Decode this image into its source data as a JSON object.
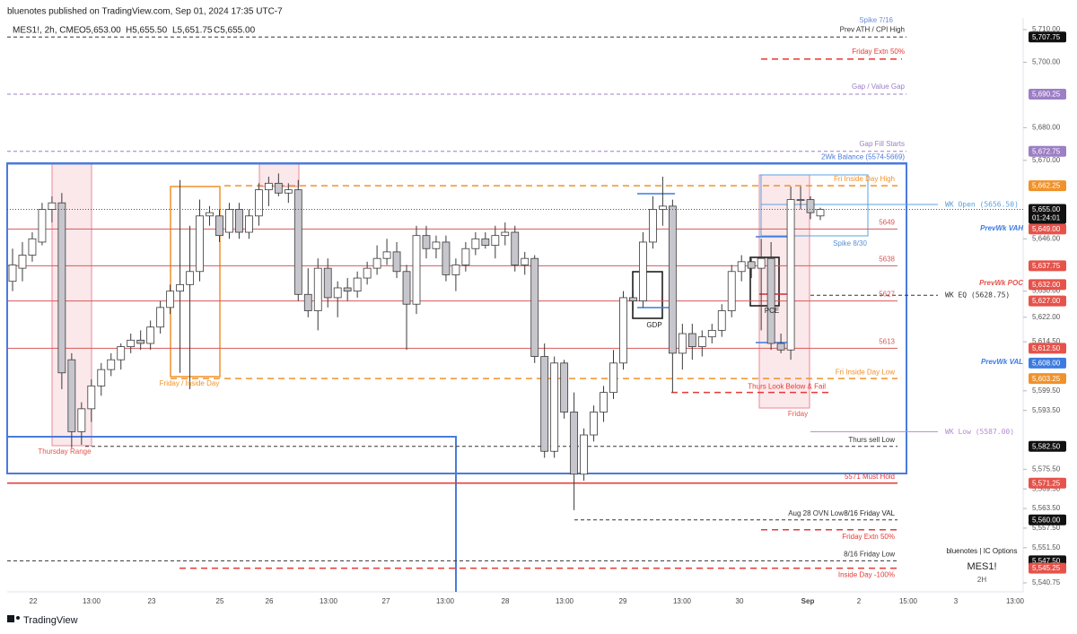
{
  "publisher": "bluenotes published on TradingView.com, Sep 01, 2024 17:35 UTC-7",
  "footer": "TradingView",
  "chart_data": {
    "type": "candlestick",
    "title": "MES1!, 2h, CME",
    "ohlc_header": [
      "O5,653.00",
      "H5,655.50",
      "L5,651.75",
      "C5,655.00"
    ],
    "up_color": "#ffffff",
    "down_color": "#c6c6cc",
    "wick_color": "#3a3a3a",
    "open": [
      5633,
      5637,
      5641,
      5645,
      5655,
      5657,
      5609,
      5587,
      5594,
      5601,
      5606,
      5609,
      5613,
      5615,
      5614,
      5619,
      5625,
      5630,
      5632,
      5636,
      5653,
      5653,
      5648,
      5655,
      5648,
      5653,
      5661,
      5663,
      5660,
      5661,
      5629,
      5624,
      5637,
      5628,
      5631,
      5630,
      5634,
      5637,
      5640,
      5642,
      5636,
      5626,
      5647,
      5643,
      5645,
      5635,
      5638,
      5643,
      5646,
      5644,
      5647,
      5648,
      5638,
      5640,
      5610,
      5581,
      5608,
      5593,
      5574,
      5586,
      5593,
      5599,
      5608,
      5628,
      5627,
      5645,
      5655,
      5656,
      5611,
      5617,
      5613,
      5616,
      5618,
      5624,
      5636,
      5639,
      5637,
      5640,
      5614,
      5612,
      5658,
      5658,
      5653
    ],
    "high": [
      5643,
      5645,
      5648,
      5657,
      5659,
      5660,
      5611,
      5596,
      5603,
      5608,
      5611,
      5614,
      5617,
      5618,
      5621,
      5627,
      5632,
      5664,
      5650,
      5658,
      5656,
      5655,
      5657,
      5657,
      5655,
      5663,
      5665,
      5666,
      5663,
      5664,
      5637,
      5640,
      5640,
      5633,
      5634,
      5636,
      5639,
      5644,
      5646,
      5645,
      5638,
      5650,
      5650,
      5647,
      5647,
      5640,
      5645,
      5648,
      5648,
      5650,
      5651,
      5650,
      5642,
      5641,
      5614,
      5610,
      5609,
      5599,
      5588,
      5595,
      5601,
      5612,
      5630,
      5630,
      5648,
      5659,
      5665,
      5658,
      5620,
      5620,
      5618,
      5620,
      5626,
      5638,
      5641,
      5640,
      5646,
      5645,
      5617,
      5662,
      5662,
      5659,
      5655.5
    ],
    "low": [
      5630,
      5633,
      5639,
      5644,
      5651,
      5600,
      5582,
      5583,
      5590,
      5598,
      5604,
      5606,
      5611,
      5612,
      5612,
      5617,
      5623,
      5605,
      5600,
      5633,
      5650,
      5645,
      5646,
      5646,
      5646,
      5650,
      5656,
      5659,
      5657,
      5627,
      5622,
      5618,
      5625,
      5622,
      5627,
      5628,
      5632,
      5635,
      5638,
      5634,
      5612,
      5623,
      5640,
      5640,
      5633,
      5630,
      5636,
      5641,
      5643,
      5640,
      5644,
      5636,
      5635,
      5608,
      5579,
      5579,
      5591,
      5563,
      5572,
      5584,
      5590,
      5597,
      5606,
      5624,
      5625,
      5643,
      5650,
      5599,
      5606,
      5609,
      5610,
      5614,
      5616,
      5622,
      5633,
      5634,
      5618,
      5612,
      5611,
      5609,
      5655,
      5652,
      5651.75
    ],
    "close": [
      5638,
      5641,
      5646,
      5655,
      5657,
      5605,
      5587,
      5594,
      5601,
      5606,
      5609,
      5613,
      5615,
      5614,
      5619,
      5625,
      5630,
      5632,
      5636,
      5653,
      5654,
      5647,
      5655,
      5648,
      5653,
      5661,
      5663,
      5660,
      5661,
      5629,
      5624,
      5637,
      5628,
      5631,
      5630,
      5634,
      5637,
      5640,
      5642,
      5636,
      5626,
      5647,
      5643,
      5645,
      5635,
      5638,
      5643,
      5646,
      5644,
      5647,
      5648,
      5638,
      5640,
      5610,
      5581,
      5608,
      5593,
      5574,
      5586,
      5593,
      5599,
      5608,
      5628,
      5627,
      5645,
      5655,
      5656,
      5611,
      5617,
      5613,
      5616,
      5618,
      5624,
      5636,
      5639,
      5637,
      5640,
      5614,
      5612,
      5658,
      5658,
      5654,
      5655
    ],
    "x_labels": [
      "22",
      "13:00",
      "23",
      "25",
      "26",
      "13:00",
      "27",
      "13:00",
      "28",
      "13:00",
      "29",
      "13:00",
      "30",
      "Sep",
      "2",
      "15:00",
      "3",
      "13:00"
    ],
    "ylim": [
      5538,
      5713.57
    ],
    "yticks": [
      {
        "value": 5710,
        "label": "5,710.00"
      },
      {
        "value": 5700,
        "label": "5,700.00"
      },
      {
        "value": 5680,
        "label": "5,680.00"
      },
      {
        "value": 5670,
        "label": "5,670.00"
      },
      {
        "value": 5646,
        "label": "5,646.00"
      },
      {
        "value": 5630,
        "label": "5,630.00"
      },
      {
        "value": 5622,
        "label": "5,622.00"
      },
      {
        "value": 5614.5,
        "label": "5,614.50"
      },
      {
        "value": 5599.5,
        "label": "5,599.50"
      },
      {
        "value": 5593.5,
        "label": "5,593.50"
      },
      {
        "value": 5575.5,
        "label": "5,575.50"
      },
      {
        "value": 5569.5,
        "label": "5,569.50"
      },
      {
        "value": 5563.5,
        "label": "5,563.50"
      },
      {
        "value": 5557.5,
        "label": "5,557.50"
      },
      {
        "value": 5551.5,
        "label": "5,551.50"
      },
      {
        "value": 5540.75,
        "label": "5,540.75"
      }
    ],
    "levels": [
      {
        "label": "Prev ATH / CPI High",
        "price": 5707.75,
        "color": "#333333"
      },
      {
        "label": "Friday Extn 50%",
        "price": 5701,
        "color": "#e53935"
      },
      {
        "label": "Gap / Value Gap",
        "price": 5690.25,
        "color": "#9c7fc4"
      },
      {
        "label": "Gap Fill Starts",
        "price": 5672.75,
        "color": "#9c7fc4"
      },
      {
        "label": "2Wk Balance (5574-5669)",
        "price": 5669,
        "color": "#4a7bdc"
      },
      {
        "label": "Fri Inside Day High",
        "price": 5662.25,
        "color": "#f0922b"
      },
      {
        "label": "WK Open (5656.50)",
        "price": 5656.5,
        "color": "#5aa0e0"
      },
      {
        "label": "5649",
        "price": 5649,
        "color": "#d65a5a"
      },
      {
        "label": "5638",
        "price": 5637.75,
        "color": "#d65a5a"
      },
      {
        "label": "WK EQ (5628.75)",
        "price": 5628.75,
        "color": "#333333"
      },
      {
        "label": "5627",
        "price": 5627,
        "color": "#d65a5a"
      },
      {
        "label": "5613",
        "price": 5612.5,
        "color": "#d65a5a"
      },
      {
        "label": "Fri Inside Day Low",
        "price": 5603.25,
        "color": "#f0922b"
      },
      {
        "label": "Thurs Look Below & Fail",
        "price": 5599,
        "color": "#e53935"
      },
      {
        "label": "WK Low (5587.00)",
        "price": 5587,
        "color": "#b58ad0"
      },
      {
        "label": "Thurs sell Low",
        "price": 5582.5,
        "color": "#333333"
      },
      {
        "label": "5571 Must Hold",
        "price": 5571.25,
        "color": "#e53935"
      },
      {
        "label": "Aug 28 OVN Low",
        "price": 5560,
        "color": "#333333"
      },
      {
        "label": "Friday Extn 50%",
        "price": 5557,
        "color": "#e53935"
      },
      {
        "label": "8/16 Friday Low",
        "price": 5547.5,
        "color": "#333333"
      },
      {
        "label": "Inside Day -100%",
        "price": 5545.25,
        "color": "#e53935"
      }
    ],
    "price_labels": [
      {
        "value": 5707.75,
        "label": "5,707.75",
        "color": "#111111"
      },
      {
        "value": 5690.25,
        "label": "5,690.25",
        "color": "#9c7fc4"
      },
      {
        "value": 5672.75,
        "label": "5,672.75",
        "color": "#9c7fc4"
      },
      {
        "value": 5662.25,
        "label": "5,662.25",
        "color": "#f0922b"
      },
      {
        "value": 5649,
        "label": "5,649.00",
        "color": "#e5534b"
      },
      {
        "value": 5637.75,
        "label": "5,637.75",
        "color": "#e5534b"
      },
      {
        "value": 5632,
        "label": "5,632.00",
        "color": "#e5534b"
      },
      {
        "value": 5627,
        "label": "5,627.00",
        "color": "#e5534b"
      },
      {
        "value": 5612.5,
        "label": "5,612.50",
        "color": "#e5534b"
      },
      {
        "value": 5608,
        "label": "5,608.00",
        "color": "#3d7be0"
      },
      {
        "value": 5603.25,
        "label": "5,603.25",
        "color": "#f0922b"
      },
      {
        "value": 5582.5,
        "label": "5,582.50",
        "color": "#111111"
      },
      {
        "value": 5571.25,
        "label": "5,571.25",
        "color": "#e5534b"
      },
      {
        "value": 5560,
        "label": "5,560.00",
        "color": "#111111"
      },
      {
        "value": 5547.5,
        "label": "5,547.50",
        "color": "#111111"
      },
      {
        "value": 5545.25,
        "label": "5,545.25",
        "color": "#e5534b"
      }
    ],
    "current_price": {
      "value": 5655,
      "label": "5,655.00",
      "countdown": "01:24:01",
      "color": "#111111"
    },
    "annotations": [
      {
        "text": "Spike 7/16",
        "color": "#6a8fd8"
      },
      {
        "text": "PrevWk VAH",
        "color": "#3d7be0"
      },
      {
        "text": "PrevWk POC",
        "color": "#e5534b"
      },
      {
        "text": "PrevWk VAL",
        "color": "#3d7be0"
      },
      {
        "text": "Thursday Range",
        "color": "#e5534b"
      },
      {
        "text": "Friday / Inside Day",
        "color": "#f0922b"
      },
      {
        "text": "GDP",
        "color": "#222222"
      },
      {
        "text": "PCE",
        "color": "#222222"
      },
      {
        "text": "Spike 8/30",
        "color": "#5a8fd8"
      },
      {
        "text": "Friday",
        "color": "#e5534b"
      },
      {
        "text": "8/16 Friday VAL",
        "color": "#222222"
      },
      {
        "text": "bluenotes | IC Options",
        "color": "#222222"
      },
      {
        "text": "MES1!",
        "color": "#222222"
      },
      {
        "text": "2H",
        "color": "#555555"
      }
    ]
  }
}
